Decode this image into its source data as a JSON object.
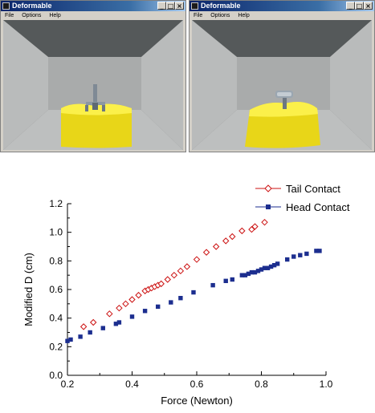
{
  "windows": [
    {
      "title": "Deformable",
      "menu": [
        "File",
        "Options",
        "Help"
      ],
      "controls": [
        "_",
        "□",
        "×"
      ]
    },
    {
      "title": "Deformable",
      "menu": [
        "File",
        "Options",
        "Help"
      ],
      "controls": [
        "_",
        "□",
        "×"
      ]
    }
  ],
  "colors": {
    "title_bar": "#0a246a",
    "ceiling": "#55595a",
    "wall": "#a9abab",
    "floor": "#bdbfbf",
    "deformable_object": "#f5e520",
    "tail_series": "#cc1111",
    "head_series": "#1c2e8f"
  },
  "chart_data": {
    "type": "scatter",
    "xlabel": "Force (Newton)",
    "ylabel": "Modified D (cm)",
    "xlim": [
      0.2,
      1.0
    ],
    "ylim": [
      0.0,
      1.2
    ],
    "xticks": [
      "0.2",
      "0.4",
      "0.6",
      "0.8",
      "1.0"
    ],
    "yticks": [
      "0.0",
      "0.2",
      "0.4",
      "0.6",
      "0.8",
      "1.0",
      "1.2"
    ],
    "legend_position": "top-right",
    "series": [
      {
        "name": "Tail Contact",
        "marker": "open-diamond",
        "color": "#cc1111",
        "x": [
          0.25,
          0.28,
          0.33,
          0.36,
          0.38,
          0.4,
          0.42,
          0.44,
          0.45,
          0.46,
          0.47,
          0.48,
          0.49,
          0.51,
          0.53,
          0.55,
          0.57,
          0.6,
          0.63,
          0.66,
          0.69,
          0.71,
          0.74,
          0.77,
          0.78,
          0.81
        ],
        "y": [
          0.34,
          0.37,
          0.43,
          0.47,
          0.5,
          0.53,
          0.56,
          0.59,
          0.6,
          0.61,
          0.62,
          0.63,
          0.64,
          0.67,
          0.7,
          0.73,
          0.76,
          0.81,
          0.86,
          0.9,
          0.94,
          0.97,
          1.01,
          1.02,
          1.04,
          1.07
        ]
      },
      {
        "name": "Head Contact",
        "marker": "filled-square",
        "color": "#1c2e8f",
        "x": [
          0.2,
          0.21,
          0.24,
          0.27,
          0.31,
          0.35,
          0.36,
          0.4,
          0.44,
          0.48,
          0.52,
          0.55,
          0.59,
          0.65,
          0.69,
          0.71,
          0.74,
          0.75,
          0.76,
          0.77,
          0.78,
          0.79,
          0.8,
          0.81,
          0.82,
          0.83,
          0.84,
          0.85,
          0.88,
          0.9,
          0.92,
          0.94,
          0.97,
          0.98
        ],
        "y": [
          0.24,
          0.25,
          0.27,
          0.3,
          0.33,
          0.36,
          0.37,
          0.41,
          0.45,
          0.48,
          0.51,
          0.54,
          0.58,
          0.63,
          0.66,
          0.67,
          0.7,
          0.7,
          0.71,
          0.72,
          0.72,
          0.73,
          0.74,
          0.75,
          0.75,
          0.76,
          0.77,
          0.78,
          0.81,
          0.83,
          0.84,
          0.85,
          0.87,
          0.87
        ]
      }
    ]
  }
}
